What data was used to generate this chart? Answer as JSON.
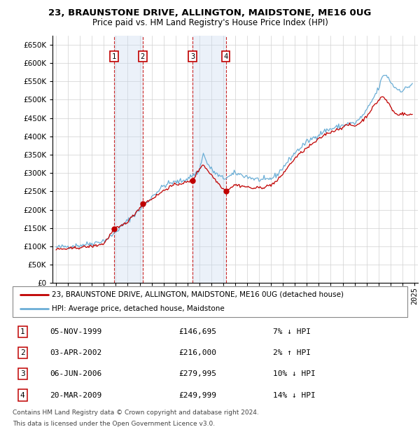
{
  "title1": "23, BRAUNSTONE DRIVE, ALLINGTON, MAIDSTONE, ME16 0UG",
  "title2": "Price paid vs. HM Land Registry's House Price Index (HPI)",
  "legend_line1": "23, BRAUNSTONE DRIVE, ALLINGTON, MAIDSTONE, ME16 0UG (detached house)",
  "legend_line2": "HPI: Average price, detached house, Maidstone",
  "footer1": "Contains HM Land Registry data © Crown copyright and database right 2024.",
  "footer2": "This data is licensed under the Open Government Licence v3.0.",
  "transactions": [
    {
      "num": 1,
      "date": "05-NOV-1999",
      "price": "£146,695",
      "hpi": "7% ↓ HPI",
      "year": 1999.85
    },
    {
      "num": 2,
      "date": "03-APR-2002",
      "price": "£216,000",
      "hpi": "2% ↑ HPI",
      "year": 2002.25
    },
    {
      "num": 3,
      "date": "06-JUN-2006",
      "price": "£279,995",
      "hpi": "10% ↓ HPI",
      "year": 2006.43
    },
    {
      "num": 4,
      "date": "20-MAR-2009",
      "price": "£249,999",
      "hpi": "14% ↓ HPI",
      "year": 2009.22
    }
  ],
  "transaction_prices": [
    146695,
    216000,
    279995,
    249999
  ],
  "hpi_color": "#6baed6",
  "price_color": "#c00000",
  "shade_color": "#c6d9f0",
  "box_color": "#c00000",
  "ylim": [
    0,
    675000
  ],
  "yticks": [
    0,
    50000,
    100000,
    150000,
    200000,
    250000,
    300000,
    350000,
    400000,
    450000,
    500000,
    550000,
    600000,
    650000
  ],
  "xlim_start": 1994.7,
  "xlim_end": 2025.3,
  "xtick_years": [
    1995,
    1996,
    1997,
    1998,
    1999,
    2000,
    2001,
    2002,
    2003,
    2004,
    2005,
    2006,
    2007,
    2008,
    2009,
    2010,
    2011,
    2012,
    2013,
    2014,
    2015,
    2016,
    2017,
    2018,
    2019,
    2020,
    2021,
    2022,
    2023,
    2024,
    2025
  ],
  "hpi_anchors": [
    [
      1995.0,
      97000
    ],
    [
      1996.0,
      100000
    ],
    [
      1997.0,
      103000
    ],
    [
      1998.0,
      108000
    ],
    [
      1999.0,
      115000
    ],
    [
      1999.5,
      125000
    ],
    [
      2000.0,
      140000
    ],
    [
      2000.5,
      155000
    ],
    [
      2001.0,
      170000
    ],
    [
      2001.5,
      185000
    ],
    [
      2002.0,
      200000
    ],
    [
      2002.5,
      215000
    ],
    [
      2003.0,
      235000
    ],
    [
      2003.5,
      250000
    ],
    [
      2004.0,
      265000
    ],
    [
      2004.5,
      272000
    ],
    [
      2005.0,
      275000
    ],
    [
      2005.5,
      278000
    ],
    [
      2006.0,
      285000
    ],
    [
      2006.5,
      295000
    ],
    [
      2007.0,
      305000
    ],
    [
      2007.3,
      355000
    ],
    [
      2007.6,
      330000
    ],
    [
      2008.0,
      310000
    ],
    [
      2008.5,
      295000
    ],
    [
      2009.0,
      285000
    ],
    [
      2009.5,
      290000
    ],
    [
      2010.0,
      300000
    ],
    [
      2010.5,
      295000
    ],
    [
      2011.0,
      290000
    ],
    [
      2011.5,
      285000
    ],
    [
      2012.0,
      282000
    ],
    [
      2012.5,
      280000
    ],
    [
      2013.0,
      285000
    ],
    [
      2013.5,
      295000
    ],
    [
      2014.0,
      315000
    ],
    [
      2014.5,
      335000
    ],
    [
      2015.0,
      355000
    ],
    [
      2015.5,
      370000
    ],
    [
      2016.0,
      385000
    ],
    [
      2016.5,
      395000
    ],
    [
      2017.0,
      405000
    ],
    [
      2017.5,
      415000
    ],
    [
      2018.0,
      420000
    ],
    [
      2018.5,
      425000
    ],
    [
      2019.0,
      430000
    ],
    [
      2019.5,
      435000
    ],
    [
      2020.0,
      435000
    ],
    [
      2020.5,
      450000
    ],
    [
      2021.0,
      470000
    ],
    [
      2021.5,
      500000
    ],
    [
      2022.0,
      530000
    ],
    [
      2022.3,
      560000
    ],
    [
      2022.6,
      570000
    ],
    [
      2022.9,
      555000
    ],
    [
      2023.2,
      540000
    ],
    [
      2023.5,
      530000
    ],
    [
      2024.0,
      525000
    ],
    [
      2024.5,
      535000
    ],
    [
      2024.9,
      545000
    ]
  ],
  "price_anchors": [
    [
      1995.0,
      92000
    ],
    [
      1996.0,
      93000
    ],
    [
      1997.0,
      97000
    ],
    [
      1998.0,
      100000
    ],
    [
      1999.0,
      107000
    ],
    [
      1999.85,
      146695
    ],
    [
      2000.3,
      152000
    ],
    [
      2001.0,
      168000
    ],
    [
      2001.5,
      185000
    ],
    [
      2002.25,
      216000
    ],
    [
      2002.8,
      225000
    ],
    [
      2003.5,
      240000
    ],
    [
      2004.0,
      252000
    ],
    [
      2004.5,
      262000
    ],
    [
      2005.0,
      268000
    ],
    [
      2005.5,
      272000
    ],
    [
      2006.0,
      275000
    ],
    [
      2006.43,
      279995
    ],
    [
      2006.7,
      295000
    ],
    [
      2007.0,
      310000
    ],
    [
      2007.3,
      325000
    ],
    [
      2007.5,
      315000
    ],
    [
      2008.0,
      295000
    ],
    [
      2008.5,
      275000
    ],
    [
      2009.22,
      249999
    ],
    [
      2009.5,
      258000
    ],
    [
      2010.0,
      268000
    ],
    [
      2010.5,
      265000
    ],
    [
      2011.0,
      262000
    ],
    [
      2011.5,
      258000
    ],
    [
      2012.0,
      260000
    ],
    [
      2012.5,
      262000
    ],
    [
      2013.0,
      268000
    ],
    [
      2013.5,
      278000
    ],
    [
      2014.0,
      298000
    ],
    [
      2014.5,
      320000
    ],
    [
      2015.0,
      340000
    ],
    [
      2015.5,
      355000
    ],
    [
      2016.0,
      368000
    ],
    [
      2016.5,
      380000
    ],
    [
      2017.0,
      392000
    ],
    [
      2017.5,
      405000
    ],
    [
      2018.0,
      412000
    ],
    [
      2018.5,
      418000
    ],
    [
      2019.0,
      425000
    ],
    [
      2019.5,
      432000
    ],
    [
      2020.0,
      428000
    ],
    [
      2020.5,
      438000
    ],
    [
      2021.0,
      455000
    ],
    [
      2021.5,
      478000
    ],
    [
      2022.0,
      498000
    ],
    [
      2022.3,
      510000
    ],
    [
      2022.6,
      500000
    ],
    [
      2022.9,
      488000
    ],
    [
      2023.2,
      470000
    ],
    [
      2023.5,
      460000
    ],
    [
      2024.0,
      462000
    ],
    [
      2024.5,
      458000
    ],
    [
      2024.9,
      460000
    ]
  ]
}
